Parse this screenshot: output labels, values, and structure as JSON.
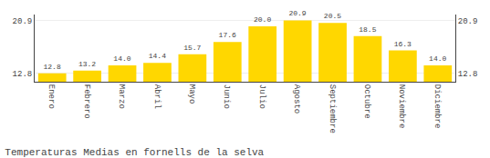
{
  "chart_data": {
    "type": "bar",
    "title": "Temperaturas Medias en fornells de la selva",
    "categories": [
      "Enero",
      "Febrero",
      "Marzo",
      "Abril",
      "Mayo",
      "Junio",
      "Julio",
      "Agosto",
      "Septiembre",
      "Octubre",
      "Noviembre",
      "Diciembre"
    ],
    "values": [
      12.8,
      13.2,
      14.0,
      14.4,
      15.7,
      17.6,
      20.0,
      20.9,
      20.5,
      18.5,
      16.3,
      14.0
    ],
    "value_labels": [
      "12.8",
      "13.2",
      "14.0",
      "14.4",
      "15.7",
      "17.6",
      "20.0",
      "20.9",
      "20.5",
      "18.5",
      "16.3",
      "14.0"
    ],
    "data_labels": true,
    "color": "#FFD700",
    "ylim": [
      11.5,
      21.8
    ],
    "yticks": [
      12.8,
      20.9
    ],
    "y2lim": [
      11.5,
      21.8
    ],
    "y2ticks": [
      12.8,
      20.9
    ],
    "grid": true
  }
}
